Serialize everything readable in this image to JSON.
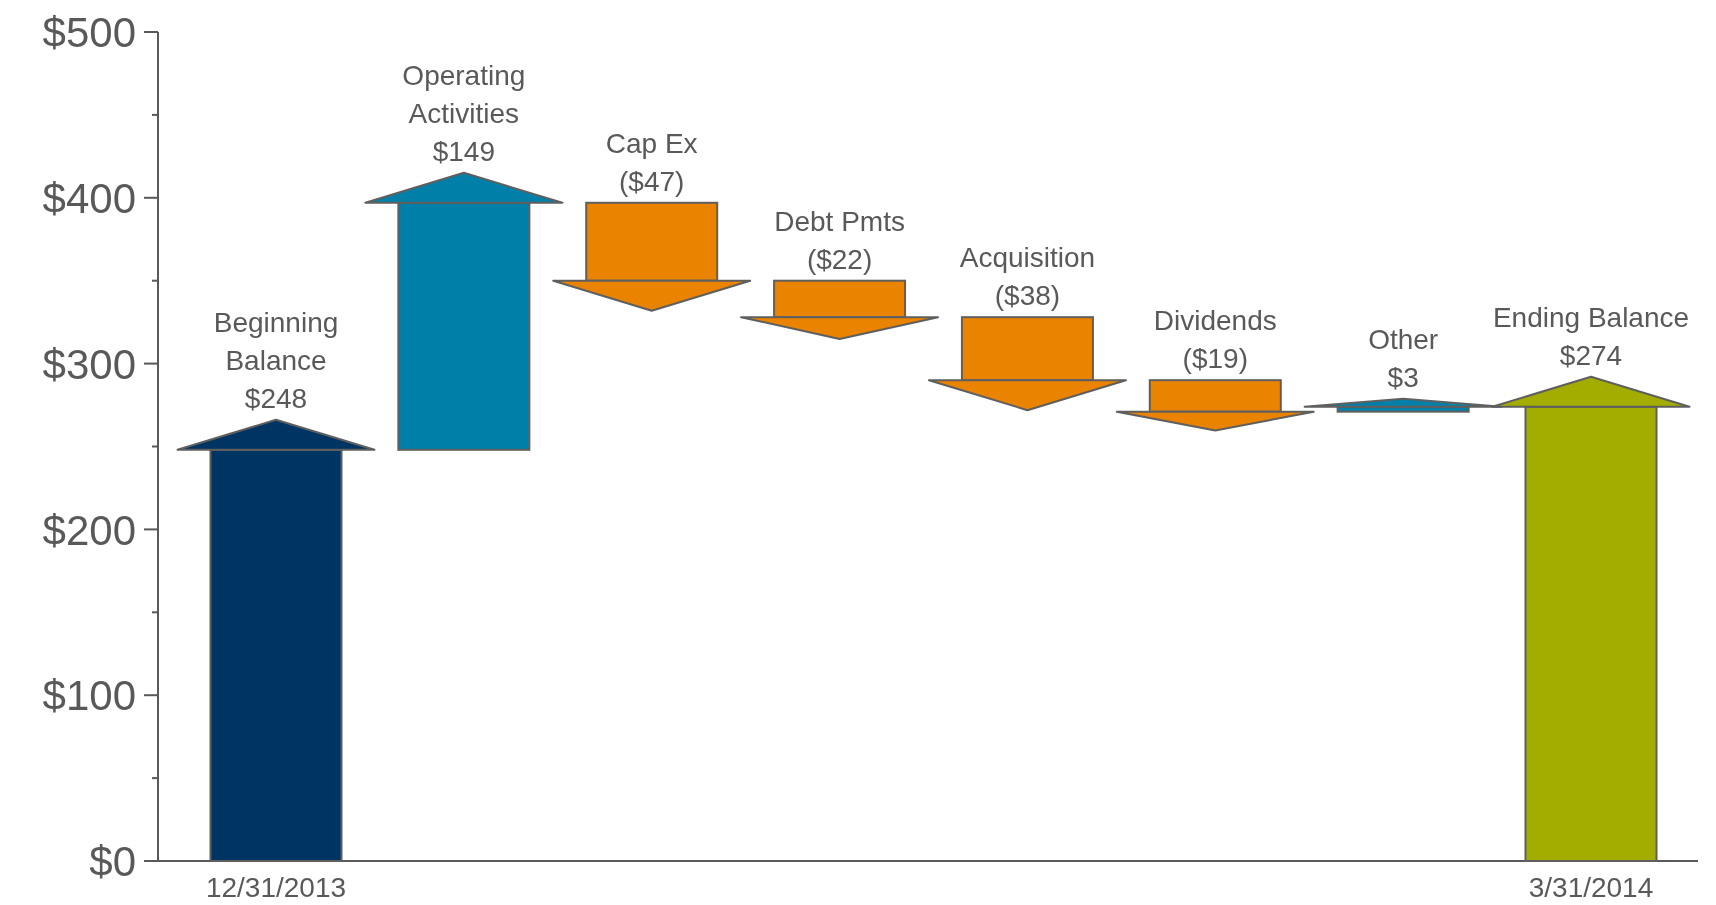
{
  "chart_data": {
    "type": "bar",
    "categories": [
      "12/31/2013",
      null,
      null,
      null,
      null,
      null,
      null,
      "3/31/2014"
    ],
    "values": [
      248,
      149,
      -47,
      -22,
      -38,
      -19,
      3,
      274
    ],
    "base": [
      0,
      248,
      397,
      350,
      328,
      290,
      271,
      0
    ],
    "colors": [
      "#003462",
      "#0080a8",
      "#e98300",
      "#e98300",
      "#e98300",
      "#e98300",
      "#0080a8",
      "#a2ad00"
    ],
    "value_labels": [
      "$248",
      "$149",
      "($47)",
      "($22)",
      "($38)",
      "($19)",
      "$3",
      "$274"
    ],
    "annotations": [
      "Beginning\nBalance",
      "Operating\nActivities",
      "Cap Ex",
      "Debt Pmts",
      "Acquisition",
      "Dividends",
      "Other",
      "Ending Balance"
    ],
    "ylim": [
      0,
      500
    ],
    "yticks": [
      {
        "value": 0,
        "label": "$0"
      },
      {
        "value": 50,
        "label": null
      },
      {
        "value": 100,
        "label": "$100"
      },
      {
        "value": 150,
        "label": null
      },
      {
        "value": 200,
        "label": "$200"
      },
      {
        "value": 250,
        "label": null
      },
      {
        "value": 300,
        "label": "$300"
      },
      {
        "value": 350,
        "label": null
      },
      {
        "value": 400,
        "label": "$400"
      },
      {
        "value": 450,
        "label": null
      },
      {
        "value": 500,
        "label": "$500"
      }
    ],
    "grid": false
  }
}
